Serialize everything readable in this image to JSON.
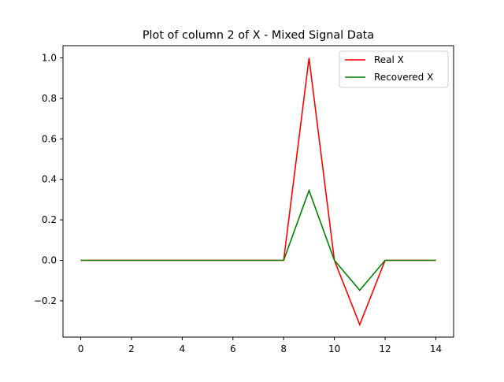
{
  "chart_data": {
    "type": "line",
    "title": "Plot of column 2 of X - Mixed Signal Data",
    "xlabel": "",
    "ylabel": "",
    "x": [
      0,
      1,
      2,
      3,
      4,
      5,
      6,
      7,
      8,
      9,
      10,
      11,
      12,
      13,
      14
    ],
    "xlim": [
      -0.7,
      14.7
    ],
    "ylim": [
      -0.3795,
      1.0605
    ],
    "xticks": [
      0,
      2,
      4,
      6,
      8,
      10,
      12,
      14
    ],
    "xtick_labels": [
      "0",
      "2",
      "4",
      "6",
      "8",
      "10",
      "12",
      "14"
    ],
    "yticks": [
      -0.2,
      0.0,
      0.2,
      0.4,
      0.6,
      0.8,
      1.0
    ],
    "ytick_labels": [
      "−0.2",
      "0.0",
      "0.2",
      "0.4",
      "0.6",
      "0.8",
      "1.0"
    ],
    "grid": false,
    "legend_position": "top-right",
    "series": [
      {
        "name": "Real X",
        "color": "#ff0000",
        "values": [
          0,
          0,
          0,
          0,
          0,
          0,
          0,
          0,
          0,
          1.0,
          0,
          -0.318,
          0,
          0,
          0
        ]
      },
      {
        "name": "Recovered X",
        "color": "#008000",
        "values": [
          0,
          0,
          0,
          0,
          0,
          0,
          0,
          0,
          0,
          0.345,
          0,
          -0.148,
          0,
          0,
          0
        ]
      }
    ]
  }
}
